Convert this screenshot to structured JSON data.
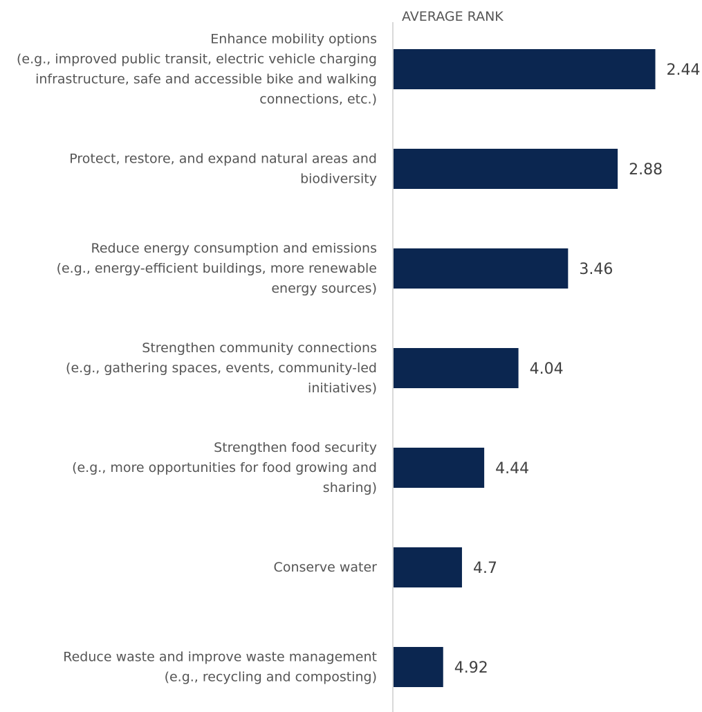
{
  "chart_data": {
    "type": "bar",
    "orientation": "horizontal",
    "title": "AVERAGE RANK",
    "categories": [
      [
        "Enhance mobility options",
        "(e.g., improved public transit, electric vehicle charging",
        "infrastructure, safe and accessible bike and walking",
        "connections, etc.)"
      ],
      [
        "Protect, restore, and expand natural areas and",
        "biodiversity"
      ],
      [
        "Reduce energy consumption and emissions",
        "(e.g., energy-efficient buildings, more renewable",
        "energy sources)"
      ],
      [
        "Strengthen community connections",
        "(e.g., gathering spaces, events, community-led",
        "initiatives)"
      ],
      [
        "Strengthen food security",
        "(e.g., more opportunities for food growing and",
        "sharing)"
      ],
      [
        "Conserve water"
      ],
      [
        "Reduce waste and improve waste management",
        "(e.g., recycling and composting)"
      ]
    ],
    "values": [
      2.44,
      2.88,
      3.46,
      4.04,
      4.44,
      4.7,
      4.92
    ],
    "value_labels": [
      "2.44",
      "2.88",
      "3.46",
      "4.04",
      "4.44",
      "4.7",
      "4.92"
    ],
    "bar_length_meaning": "inverse of average rank (lower rank = longer bar)",
    "xlabel": "",
    "ylabel": "",
    "grid": false,
    "legend": "none",
    "colors": {
      "bar": "#0b2650",
      "axis_line": "#d9d9d9",
      "label_text": "#555555",
      "value_text": "#404040"
    }
  }
}
